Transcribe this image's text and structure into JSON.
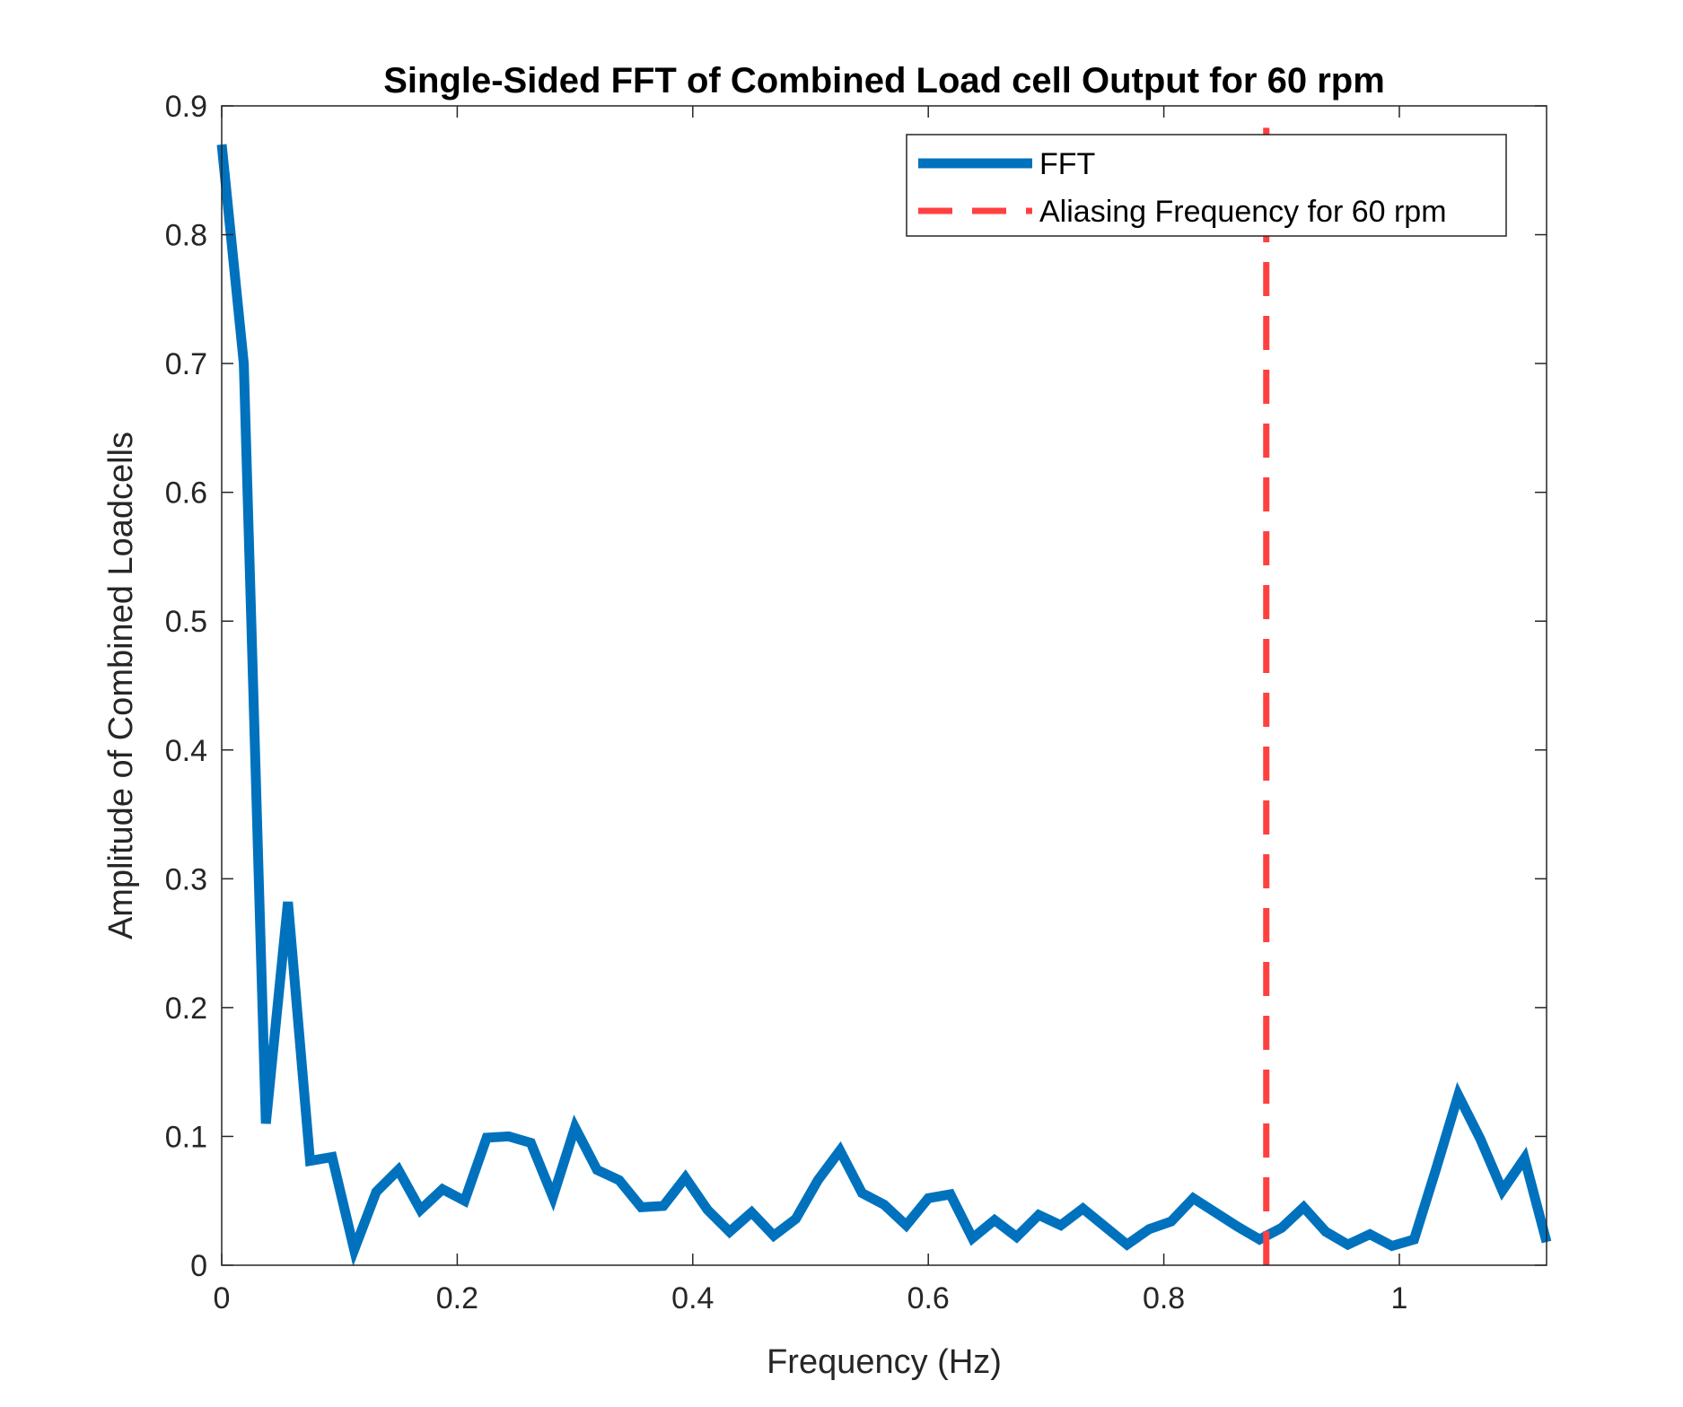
{
  "chart_data": {
    "type": "line",
    "title": "Single-Sided FFT of Combined Load cell Output for 60 rpm",
    "xlabel": "Frequency (Hz)",
    "ylabel": "Amplitude of Combined Loadcells",
    "xlim": [
      0,
      1.125
    ],
    "ylim": [
      0,
      0.9
    ],
    "xticks": [
      0,
      0.2,
      0.4,
      0.6,
      0.8,
      1
    ],
    "xtick_labels": [
      "0",
      "0.2",
      "0.4",
      "0.6",
      "0.8",
      "1"
    ],
    "yticks": [
      0,
      0.1,
      0.2,
      0.3,
      0.4,
      0.5,
      0.6,
      0.7,
      0.8,
      0.9
    ],
    "ytick_labels": [
      "0",
      "0.1",
      "0.2",
      "0.3",
      "0.4",
      "0.5",
      "0.6",
      "0.7",
      "0.8",
      "0.9"
    ],
    "grid": false,
    "legend_position": "top-right",
    "series": [
      {
        "name": "FFT",
        "color": "#0072BD",
        "line_style": "solid",
        "x": [
          0,
          0.01875,
          0.0375,
          0.05625,
          0.075,
          0.09375,
          0.1125,
          0.13125,
          0.15,
          0.16875,
          0.1875,
          0.20625,
          0.225,
          0.24375,
          0.2625,
          0.28125,
          0.3,
          0.31875,
          0.3375,
          0.35625,
          0.375,
          0.39375,
          0.4125,
          0.43125,
          0.45,
          0.46875,
          0.4875,
          0.50625,
          0.525,
          0.54375,
          0.5625,
          0.58125,
          0.6,
          0.61875,
          0.6375,
          0.65625,
          0.675,
          0.69375,
          0.7125,
          0.73125,
          0.75,
          0.76875,
          0.7875,
          0.80625,
          0.825,
          0.84375,
          0.8625,
          0.88125,
          0.9,
          0.91875,
          0.9375,
          0.95625,
          0.975,
          0.99375,
          1.0125,
          1.03125,
          1.05,
          1.06875,
          1.0875,
          1.10625,
          1.125
        ],
        "y": [
          0.87,
          0.7,
          0.11,
          0.282,
          0.081,
          0.084,
          0.012,
          0.057,
          0.074,
          0.043,
          0.059,
          0.05,
          0.099,
          0.1,
          0.095,
          0.053,
          0.107,
          0.074,
          0.066,
          0.045,
          0.046,
          0.068,
          0.043,
          0.026,
          0.041,
          0.023,
          0.036,
          0.066,
          0.089,
          0.056,
          0.047,
          0.031,
          0.052,
          0.055,
          0.021,
          0.035,
          0.022,
          0.039,
          0.031,
          0.044,
          0.03,
          0.016,
          0.028,
          0.034,
          0.052,
          0.041,
          0.03,
          0.02,
          0.029,
          0.045,
          0.026,
          0.016,
          0.024,
          0.015,
          0.02,
          0.075,
          0.132,
          0.098,
          0.058,
          0.083,
          0.018
        ]
      },
      {
        "name": "Aliasing Frequency for 60 rpm",
        "color": "#FF4040",
        "line_style": "dashed",
        "x": [
          0.887,
          0.887
        ],
        "y": [
          0,
          0.883
        ]
      }
    ]
  }
}
